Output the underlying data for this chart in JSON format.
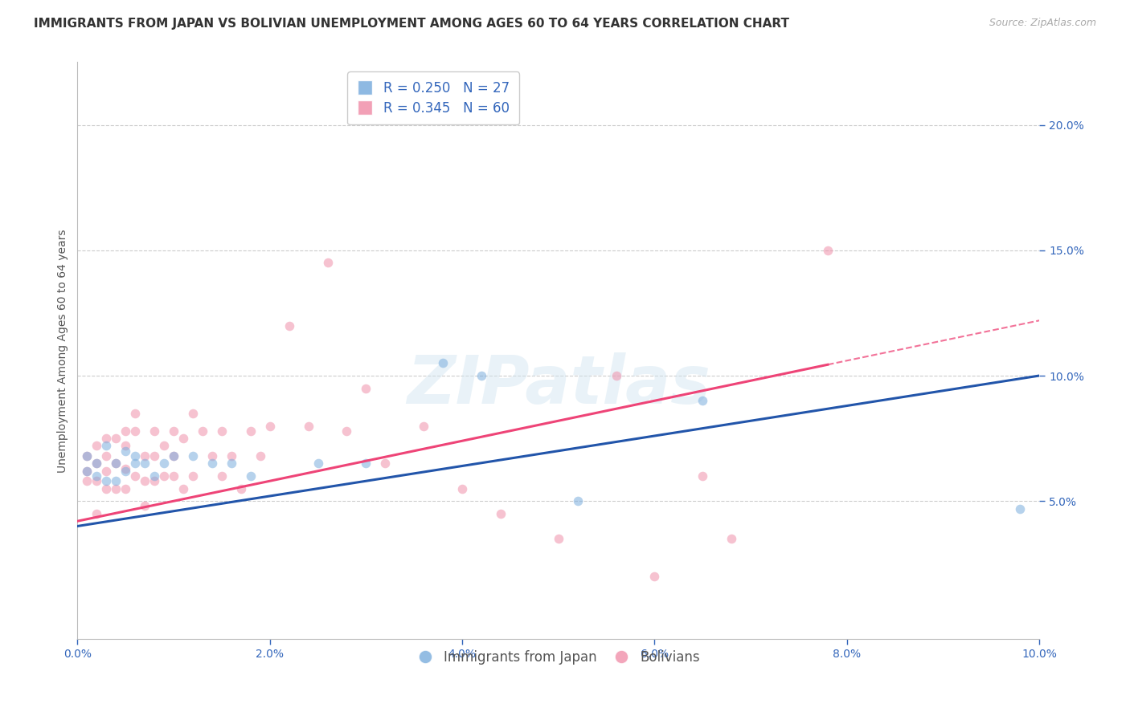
{
  "title": "IMMIGRANTS FROM JAPAN VS BOLIVIAN UNEMPLOYMENT AMONG AGES 60 TO 64 YEARS CORRELATION CHART",
  "source": "Source: ZipAtlas.com",
  "ylabel": "Unemployment Among Ages 60 to 64 years",
  "xlim": [
    0.0,
    0.1
  ],
  "ylim": [
    -0.005,
    0.225
  ],
  "xticks": [
    0.0,
    0.02,
    0.04,
    0.06,
    0.08,
    0.1
  ],
  "yticks": [
    0.05,
    0.1,
    0.15,
    0.2
  ],
  "xtick_labels": [
    "0.0%",
    "2.0%",
    "4.0%",
    "6.0%",
    "8.0%",
    "10.0%"
  ],
  "ytick_labels": [
    "5.0%",
    "10.0%",
    "15.0%",
    "20.0%"
  ],
  "background_color": "#ffffff",
  "grid_color": "#cccccc",
  "japan_color": "#7aaddd",
  "bolivia_color": "#f090aa",
  "japan_line_color": "#2255aa",
  "bolivia_line_color": "#ee4477",
  "japan_scatter_x": [
    0.001,
    0.001,
    0.002,
    0.002,
    0.003,
    0.003,
    0.004,
    0.004,
    0.005,
    0.005,
    0.006,
    0.006,
    0.007,
    0.008,
    0.009,
    0.01,
    0.012,
    0.014,
    0.016,
    0.018,
    0.025,
    0.03,
    0.038,
    0.042,
    0.052,
    0.065,
    0.098
  ],
  "japan_scatter_y": [
    0.062,
    0.068,
    0.06,
    0.065,
    0.058,
    0.072,
    0.065,
    0.058,
    0.062,
    0.07,
    0.065,
    0.068,
    0.065,
    0.06,
    0.065,
    0.068,
    0.068,
    0.065,
    0.065,
    0.06,
    0.065,
    0.065,
    0.105,
    0.1,
    0.05,
    0.09,
    0.047
  ],
  "bolivia_scatter_x": [
    0.001,
    0.001,
    0.001,
    0.002,
    0.002,
    0.002,
    0.002,
    0.003,
    0.003,
    0.003,
    0.003,
    0.004,
    0.004,
    0.004,
    0.005,
    0.005,
    0.005,
    0.005,
    0.006,
    0.006,
    0.006,
    0.007,
    0.007,
    0.007,
    0.008,
    0.008,
    0.008,
    0.009,
    0.009,
    0.01,
    0.01,
    0.01,
    0.011,
    0.011,
    0.012,
    0.012,
    0.013,
    0.014,
    0.015,
    0.015,
    0.016,
    0.017,
    0.018,
    0.019,
    0.02,
    0.022,
    0.024,
    0.026,
    0.028,
    0.03,
    0.032,
    0.036,
    0.04,
    0.044,
    0.05,
    0.056,
    0.06,
    0.065,
    0.068,
    0.078
  ],
  "bolivia_scatter_y": [
    0.068,
    0.062,
    0.058,
    0.072,
    0.065,
    0.058,
    0.045,
    0.075,
    0.068,
    0.062,
    0.055,
    0.075,
    0.065,
    0.055,
    0.078,
    0.072,
    0.063,
    0.055,
    0.085,
    0.078,
    0.06,
    0.068,
    0.058,
    0.048,
    0.078,
    0.068,
    0.058,
    0.072,
    0.06,
    0.078,
    0.068,
    0.06,
    0.075,
    0.055,
    0.085,
    0.06,
    0.078,
    0.068,
    0.06,
    0.078,
    0.068,
    0.055,
    0.078,
    0.068,
    0.08,
    0.12,
    0.08,
    0.145,
    0.078,
    0.095,
    0.065,
    0.08,
    0.055,
    0.045,
    0.035,
    0.1,
    0.02,
    0.06,
    0.035,
    0.15
  ],
  "watermark_text": "ZIPatlas",
  "title_fontsize": 11,
  "axis_label_fontsize": 10,
  "tick_fontsize": 10,
  "legend_fontsize": 11,
  "source_fontsize": 9,
  "marker_size": 70,
  "marker_alpha": 0.55,
  "japan_line_intercept": 0.04,
  "japan_line_slope": 0.6,
  "bolivia_line_intercept": 0.042,
  "bolivia_line_slope": 0.8
}
